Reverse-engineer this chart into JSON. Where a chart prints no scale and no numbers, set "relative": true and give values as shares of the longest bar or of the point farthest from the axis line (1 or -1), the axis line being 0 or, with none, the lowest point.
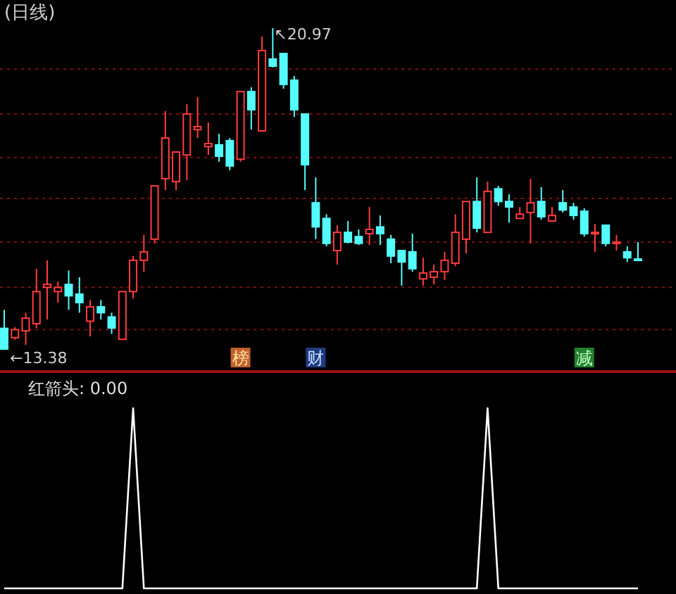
{
  "chart_data": [
    {
      "type": "candlestick",
      "title": "(日线)",
      "grid": "y",
      "yticks": [
        {
          "value": 20.0,
          "label": null
        },
        {
          "value": 18.94,
          "label": null
        },
        {
          "value": 17.91,
          "label": null
        },
        {
          "value": 16.94,
          "label": null
        },
        {
          "value": 15.91,
          "label": null
        },
        {
          "value": 14.84,
          "label": null
        },
        {
          "value": 13.84,
          "label": null
        }
      ],
      "categories": [
        null,
        null,
        null,
        null,
        null,
        null,
        null,
        null,
        null,
        null,
        null,
        null,
        null,
        null,
        null,
        null,
        null,
        null,
        null,
        null,
        null,
        null,
        null,
        null,
        null,
        null,
        null,
        null,
        null,
        null,
        null,
        null,
        null,
        null,
        null,
        null,
        null,
        null,
        null,
        null,
        null,
        null,
        null,
        null,
        null,
        null,
        null,
        null,
        null,
        null,
        null,
        null,
        null,
        null,
        null,
        null,
        null,
        null,
        null,
        null
      ],
      "ohlc": [
        [
          13.87,
          14.31,
          13.38,
          13.38
        ],
        [
          13.65,
          13.9,
          13.6,
          13.84
        ],
        [
          13.81,
          14.24,
          13.48,
          14.11
        ],
        [
          13.98,
          15.28,
          13.88,
          14.74
        ],
        [
          14.84,
          15.48,
          14.08,
          14.91
        ],
        [
          14.74,
          14.98,
          14.48,
          14.84
        ],
        [
          14.91,
          15.24,
          14.31,
          14.64
        ],
        [
          14.68,
          15.08,
          14.24,
          14.48
        ],
        [
          14.04,
          14.54,
          13.68,
          14.38
        ],
        [
          14.38,
          14.54,
          14.08,
          14.24
        ],
        [
          14.14,
          14.24,
          13.74,
          13.88
        ],
        [
          13.61,
          14.74,
          13.61,
          14.74
        ],
        [
          14.74,
          15.58,
          14.58,
          15.48
        ],
        [
          15.48,
          16.08,
          15.21,
          15.68
        ],
        [
          15.98,
          17.24,
          15.88,
          17.24
        ],
        [
          17.41,
          19.01,
          17.14,
          18.37
        ],
        [
          17.34,
          18.04,
          17.14,
          18.04
        ],
        [
          17.97,
          19.17,
          17.37,
          18.94
        ],
        [
          18.57,
          19.34,
          18.37,
          18.64
        ],
        [
          18.17,
          18.74,
          17.97,
          18.24
        ],
        [
          18.21,
          18.47,
          17.81,
          17.94
        ],
        [
          18.31,
          18.37,
          17.61,
          17.71
        ],
        [
          17.87,
          19.47,
          17.81,
          19.47
        ],
        [
          19.47,
          19.57,
          18.57,
          19.04
        ],
        [
          18.54,
          20.77,
          18.54,
          20.44
        ],
        [
          20.24,
          20.97,
          20.04,
          20.07
        ],
        [
          20.37,
          20.37,
          19.54,
          19.64
        ],
        [
          19.74,
          19.84,
          18.87,
          19.04
        ],
        [
          18.94,
          18.94,
          17.14,
          17.74
        ],
        [
          16.84,
          17.44,
          15.98,
          16.27
        ],
        [
          16.47,
          16.57,
          15.81,
          15.88
        ],
        [
          15.71,
          16.31,
          15.38,
          16.14
        ],
        [
          16.14,
          16.41,
          15.88,
          15.91
        ],
        [
          16.04,
          16.21,
          15.84,
          15.88
        ],
        [
          16.11,
          16.74,
          15.84,
          16.21
        ],
        [
          16.27,
          16.54,
          15.84,
          16.11
        ],
        [
          15.98,
          16.08,
          15.41,
          15.58
        ],
        [
          15.71,
          15.71,
          14.88,
          15.44
        ],
        [
          15.68,
          16.11,
          15.21,
          15.28
        ],
        [
          15.04,
          15.54,
          14.88,
          15.18
        ],
        [
          15.08,
          15.38,
          14.91,
          15.21
        ],
        [
          15.21,
          15.68,
          15.01,
          15.48
        ],
        [
          15.41,
          16.57,
          15.34,
          16.14
        ],
        [
          15.98,
          16.87,
          15.64,
          16.87
        ],
        [
          16.87,
          17.44,
          16.14,
          16.24
        ],
        [
          16.14,
          17.34,
          16.14,
          17.11
        ],
        [
          17.17,
          17.24,
          16.77,
          16.87
        ],
        [
          16.87,
          17.04,
          16.37,
          16.74
        ],
        [
          16.47,
          16.74,
          16.47,
          16.57
        ],
        [
          16.61,
          17.41,
          15.88,
          16.84
        ],
        [
          16.87,
          17.21,
          16.44,
          16.51
        ],
        [
          16.41,
          16.74,
          16.41,
          16.54
        ],
        [
          16.84,
          17.14,
          16.61,
          16.67
        ],
        [
          16.74,
          16.84,
          16.44,
          16.54
        ],
        [
          16.64,
          16.71,
          16.04,
          16.11
        ],
        [
          16.11,
          16.34,
          15.68,
          16.14
        ],
        [
          16.31,
          16.31,
          15.81,
          15.88
        ],
        [
          15.88,
          16.08,
          15.71,
          15.91
        ],
        [
          15.68,
          15.81,
          15.44,
          15.54
        ],
        [
          15.51,
          15.91,
          15.5,
          15.5
        ]
      ],
      "colors": [
        "#54fcfc",
        "#ff3c3c",
        "#ff3c3c",
        "#ff3c3c",
        "#ff3c3c",
        "#ff3c3c",
        "#54fcfc",
        "#54fcfc",
        "#ff3c3c",
        "#54fcfc",
        "#54fcfc",
        "#ff3c3c",
        "#ff3c3c",
        "#ff3c3c",
        "#ff3c3c",
        "#ff3c3c",
        "#ff3c3c",
        "#ff3c3c",
        "#ff3c3c",
        "#ff3c3c",
        "#54fcfc",
        "#54fcfc",
        "#ff3c3c",
        "#54fcfc",
        "#ff3c3c",
        "#54fcfc",
        "#54fcfc",
        "#54fcfc",
        "#54fcfc",
        "#54fcfc",
        "#54fcfc",
        "#ff3c3c",
        "#54fcfc",
        "#54fcfc",
        "#ff3c3c",
        "#54fcfc",
        "#54fcfc",
        "#54fcfc",
        "#54fcfc",
        "#ff3c3c",
        "#ff3c3c",
        "#ff3c3c",
        "#ff3c3c",
        "#ff3c3c",
        "#54fcfc",
        "#ff3c3c",
        "#54fcfc",
        "#54fcfc",
        "#ff3c3c",
        "#ff3c3c",
        "#54fcfc",
        "#ff3c3c",
        "#54fcfc",
        "#54fcfc",
        "#54fcfc",
        "#ff3c3c",
        "#54fcfc",
        "#ff3c3c",
        "#54fcfc",
        "#54fcfc"
      ],
      "annotations": [
        "↖20.97",
        "←13.38",
        "榜",
        "财",
        "减"
      ]
    },
    {
      "type": "line",
      "title": "红箭头: 0.00",
      "relative": true,
      "color": "#ffffff",
      "categories": [
        null,
        null,
        null,
        null,
        null,
        null,
        null,
        null,
        null,
        null,
        null,
        null,
        null,
        null,
        null,
        null,
        null,
        null,
        null,
        null,
        null,
        null,
        null,
        null,
        null,
        null,
        null,
        null,
        null,
        null,
        null,
        null,
        null,
        null,
        null,
        null,
        null,
        null,
        null,
        null,
        null,
        null,
        null,
        null,
        null,
        null,
        null,
        null,
        null,
        null,
        null,
        null,
        null,
        null,
        null,
        null,
        null,
        null,
        null,
        null
      ],
      "values": [
        0,
        0,
        0,
        0,
        0,
        0,
        0,
        0,
        0,
        0,
        0,
        0,
        1,
        0,
        0,
        0,
        0,
        0,
        0,
        0,
        0,
        0,
        0,
        0,
        0,
        0,
        0,
        0,
        0,
        0,
        0,
        0,
        0,
        0,
        0,
        0,
        0,
        0,
        0,
        0,
        0,
        0,
        0,
        0,
        0,
        1,
        0,
        0,
        0,
        0,
        0,
        0,
        0,
        0,
        0,
        0,
        0,
        0,
        0,
        0
      ]
    }
  ]
}
